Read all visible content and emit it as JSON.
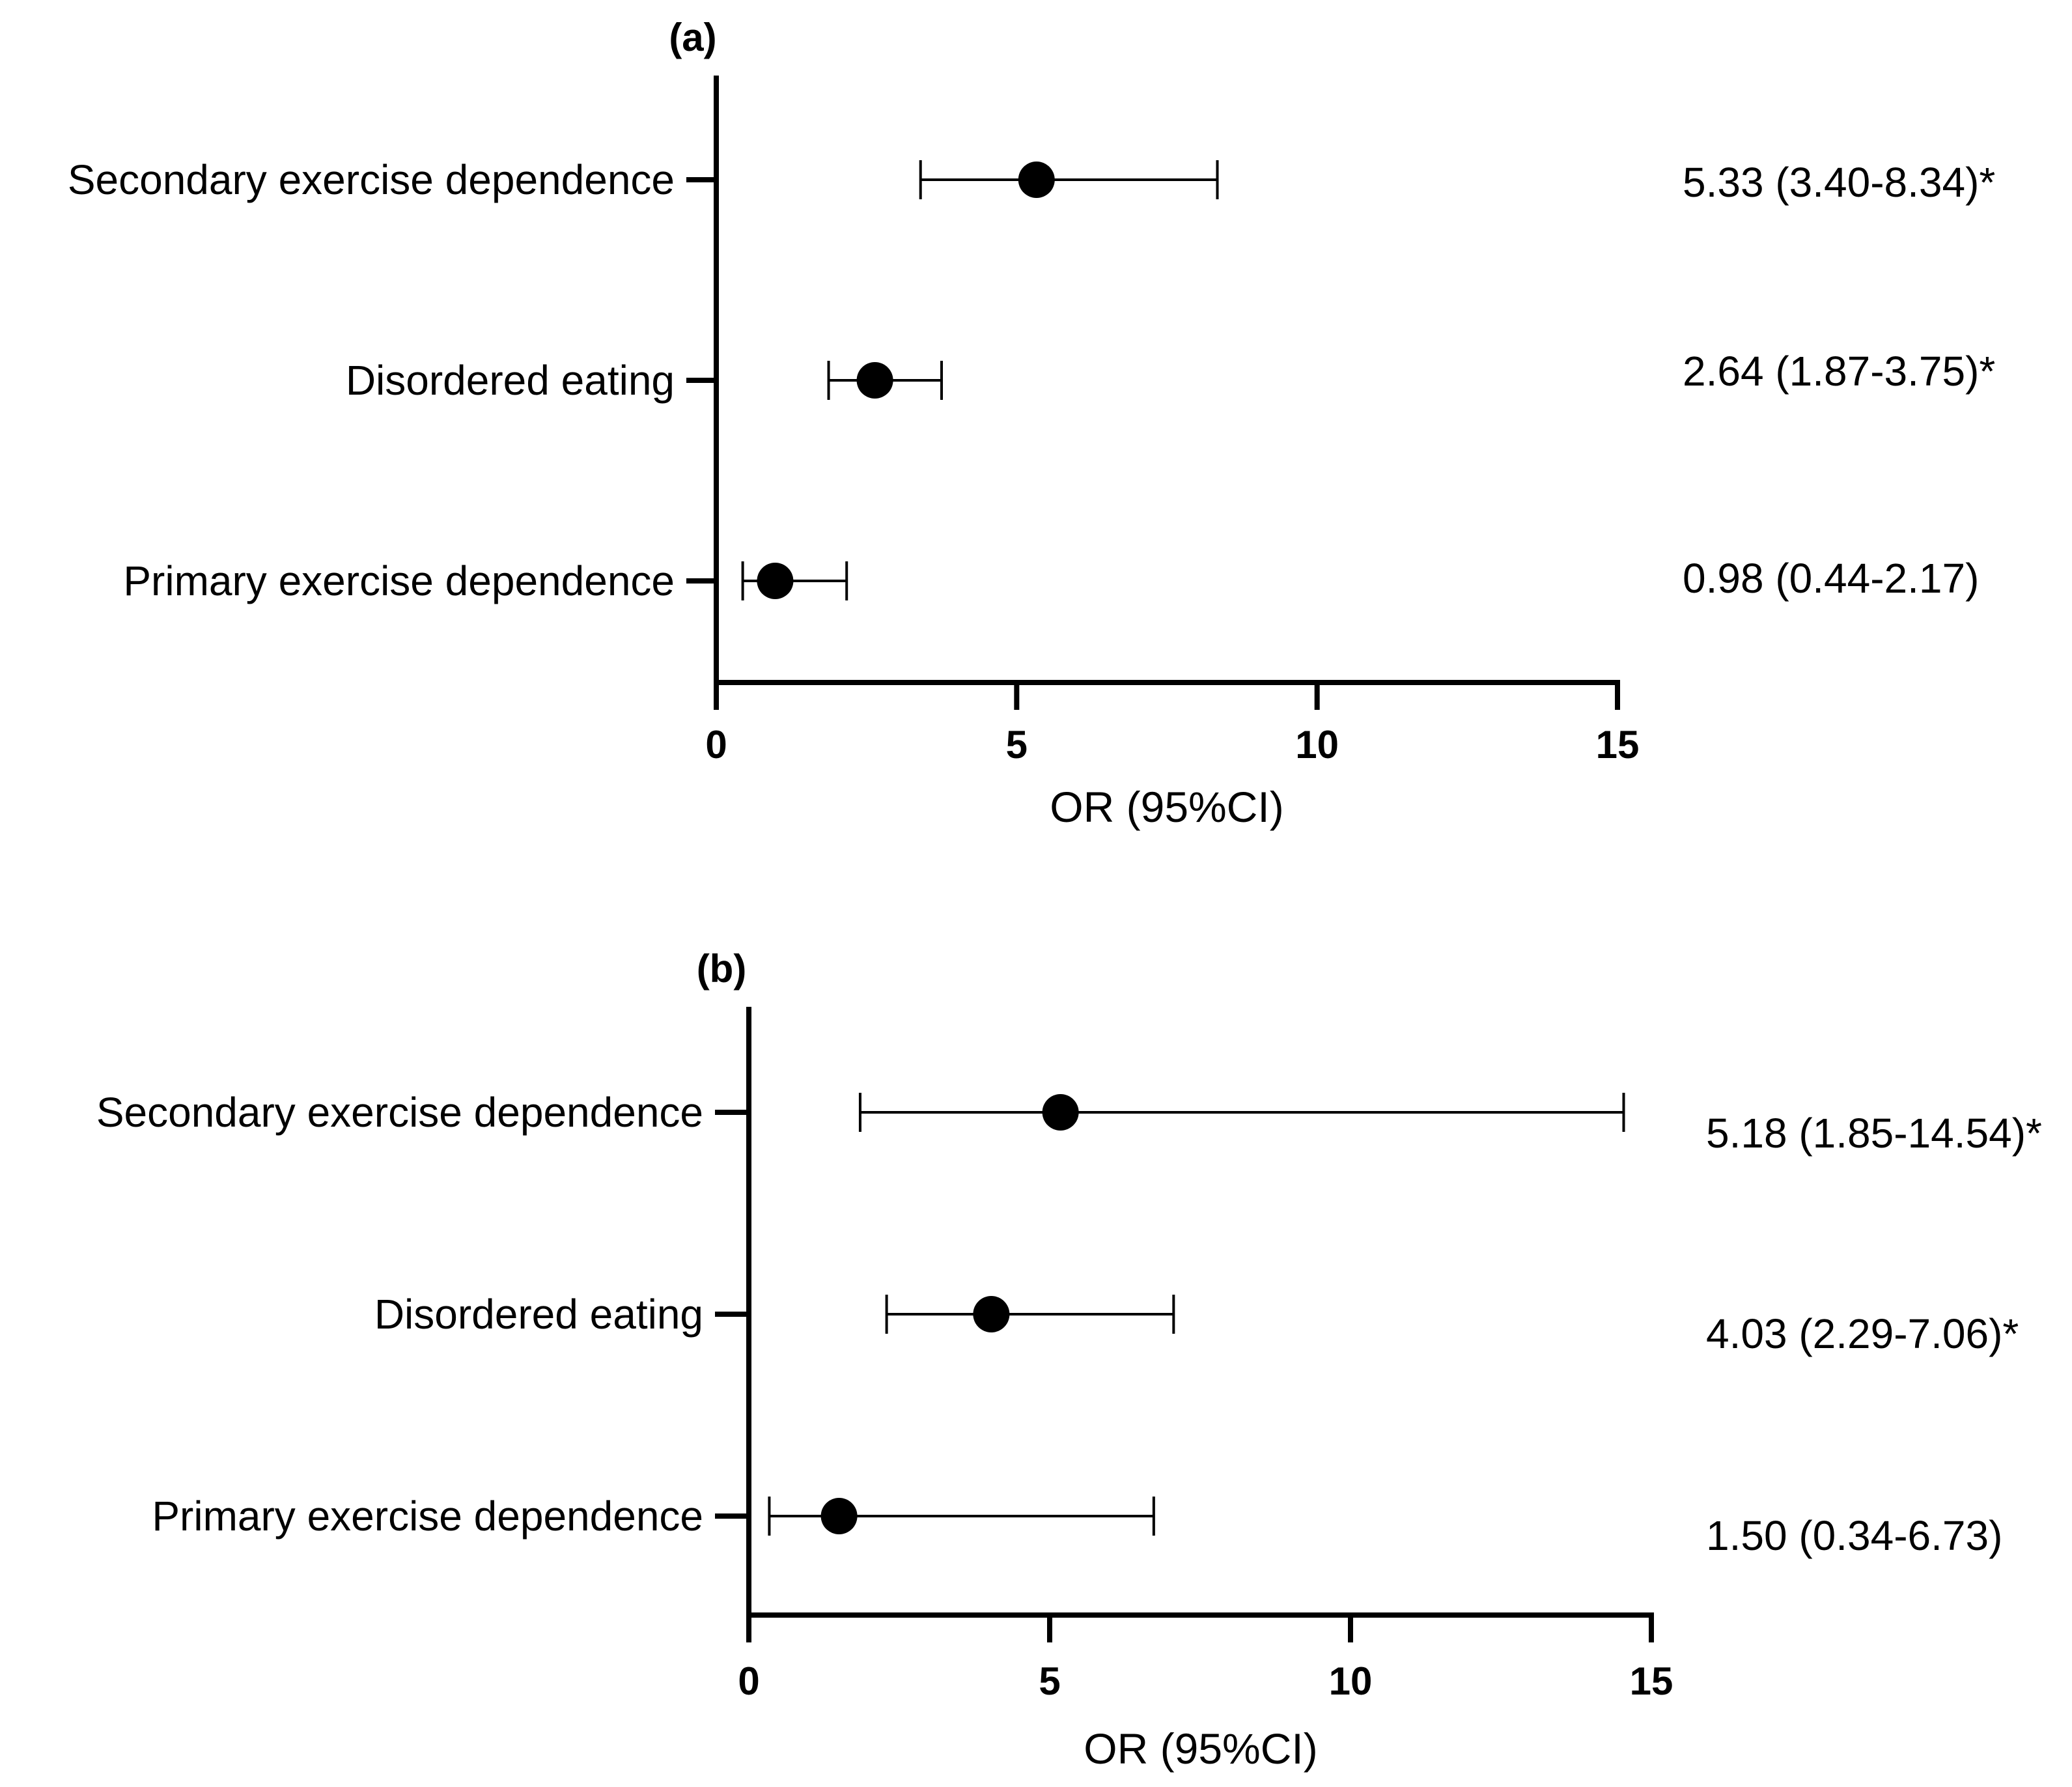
{
  "chart_data": [
    {
      "type": "forest",
      "panel_label": "(a)",
      "xlabel": "OR (95%CI)",
      "xlim": [
        0,
        15
      ],
      "xticks": [
        0,
        5,
        10,
        15
      ],
      "rows": [
        {
          "category": "Secondary exercise dependence",
          "or": 5.33,
          "ci_low": 3.4,
          "ci_high": 8.34,
          "label": "5.33 (3.40-8.34)*"
        },
        {
          "category": "Disordered eating",
          "or": 2.64,
          "ci_low": 1.87,
          "ci_high": 3.75,
          "label": "2.64 (1.87-3.75)*"
        },
        {
          "category": "Primary exercise dependence",
          "or": 0.98,
          "ci_low": 0.44,
          "ci_high": 2.17,
          "label": "0.98 (0.44-2.17)"
        }
      ]
    },
    {
      "type": "forest",
      "panel_label": "(b)",
      "xlabel": "OR (95%CI)",
      "xlim": [
        0,
        15
      ],
      "xticks": [
        0,
        5,
        10,
        15
      ],
      "rows": [
        {
          "category": "Secondary exercise dependence",
          "or": 5.18,
          "ci_low": 1.85,
          "ci_high": 14.54,
          "label": "5.18 (1.85-14.54)*"
        },
        {
          "category": "Disordered eating",
          "or": 4.03,
          "ci_low": 2.29,
          "ci_high": 7.06,
          "label": "4.03 (2.29-7.06)*"
        },
        {
          "category": "Primary exercise dependence",
          "or": 1.5,
          "ci_low": 0.34,
          "ci_high": 6.73,
          "label": "1.50 (0.34-6.73)"
        }
      ]
    }
  ],
  "colors": {
    "ink": "#000000",
    "background": "#ffffff"
  }
}
